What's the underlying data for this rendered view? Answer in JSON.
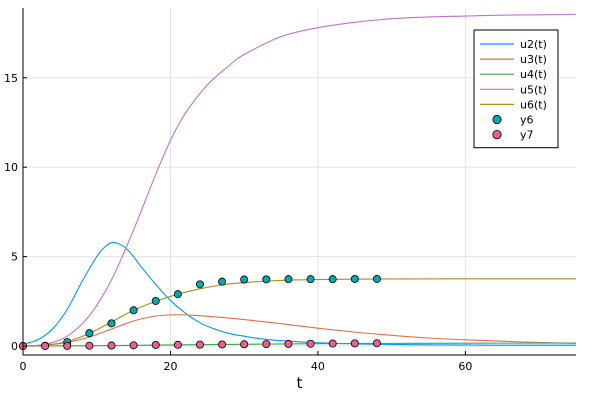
{
  "chart_data": {
    "type": "line",
    "xlabel": "t",
    "ylabel": "",
    "xlim": [
      0,
      75
    ],
    "ylim": [
      -0.5,
      18.9
    ],
    "x_ticks": [
      0,
      20,
      40,
      60
    ],
    "y_ticks": [
      0,
      5,
      10,
      15
    ],
    "x_tick_labels": [
      "0",
      "20",
      "40",
      "60"
    ],
    "y_tick_labels": [
      "0",
      "5",
      "10",
      "15"
    ],
    "grid": true,
    "legend_position": "top-right",
    "series": [
      {
        "name": "u2(t)",
        "type": "line",
        "color": "#009AFA",
        "x": [
          0,
          2,
          4,
          6,
          8,
          10,
          11,
          12,
          13,
          14,
          15,
          16,
          18,
          20,
          22,
          24,
          26,
          28,
          30,
          32,
          35,
          40,
          45,
          50,
          55,
          60,
          65,
          70,
          75
        ],
        "y": [
          0.1,
          0.35,
          0.95,
          2.05,
          3.6,
          5.0,
          5.5,
          5.78,
          5.72,
          5.45,
          5.0,
          4.45,
          3.45,
          2.55,
          1.85,
          1.3,
          0.95,
          0.7,
          0.55,
          0.42,
          0.3,
          0.18,
          0.12,
          0.09,
          0.07,
          0.06,
          0.05,
          0.05,
          0.05
        ]
      },
      {
        "name": "u3(t)",
        "type": "line",
        "color": "#E36F47",
        "x": [
          0,
          3,
          6,
          9,
          12,
          15,
          18,
          21,
          24,
          27,
          30,
          35,
          40,
          45,
          50,
          55,
          60,
          65,
          70,
          75
        ],
        "y": [
          0.0,
          0.05,
          0.2,
          0.5,
          0.95,
          1.4,
          1.68,
          1.75,
          1.7,
          1.6,
          1.48,
          1.25,
          1.0,
          0.78,
          0.6,
          0.45,
          0.35,
          0.27,
          0.2,
          0.15
        ]
      },
      {
        "name": "u4(t)",
        "type": "line",
        "color": "#3EA44E",
        "x": [
          0,
          10,
          20,
          30,
          40,
          50,
          60,
          75
        ],
        "y": [
          0.0,
          0.02,
          0.06,
          0.1,
          0.13,
          0.15,
          0.16,
          0.17
        ]
      },
      {
        "name": "u5(t)",
        "type": "line",
        "color": "#C371D2",
        "x": [
          0,
          3,
          6,
          9,
          12,
          15,
          18,
          20,
          22,
          25,
          28,
          30,
          35,
          40,
          45,
          50,
          55,
          60,
          65,
          70,
          75
        ],
        "y": [
          0.0,
          0.1,
          0.55,
          1.7,
          3.7,
          6.5,
          9.6,
          11.5,
          13.0,
          14.6,
          15.7,
          16.3,
          17.3,
          17.8,
          18.1,
          18.3,
          18.4,
          18.45,
          18.5,
          18.52,
          18.55
        ]
      },
      {
        "name": "u6(t)",
        "type": "line",
        "color": "#AC8E18",
        "x": [
          0,
          3,
          6,
          9,
          12,
          15,
          18,
          21,
          24,
          27,
          30,
          35,
          40,
          45,
          50,
          60,
          75
        ],
        "y": [
          0.0,
          0.05,
          0.25,
          0.7,
          1.35,
          2.0,
          2.5,
          2.9,
          3.2,
          3.42,
          3.55,
          3.67,
          3.72,
          3.74,
          3.75,
          3.76,
          3.76
        ]
      },
      {
        "name": "y6",
        "type": "scatter",
        "color": "#00A9AD",
        "x": [
          0,
          3,
          6,
          9,
          12,
          15,
          18,
          21,
          24,
          27,
          30,
          33,
          36,
          39,
          42,
          45,
          48
        ],
        "y": [
          0.0,
          0.02,
          0.22,
          0.72,
          1.27,
          2.0,
          2.52,
          2.9,
          3.45,
          3.6,
          3.72,
          3.73,
          3.74,
          3.74,
          3.74,
          3.75,
          3.75
        ]
      },
      {
        "name": "y7",
        "type": "scatter",
        "color": "#ED5D92",
        "x": [
          0,
          3,
          6,
          9,
          12,
          15,
          18,
          21,
          24,
          27,
          30,
          33,
          36,
          39,
          42,
          45,
          48
        ],
        "y": [
          0.0,
          0.0,
          0.01,
          0.02,
          0.03,
          0.04,
          0.06,
          0.07,
          0.08,
          0.09,
          0.1,
          0.11,
          0.12,
          0.13,
          0.14,
          0.15,
          0.16
        ]
      }
    ]
  }
}
